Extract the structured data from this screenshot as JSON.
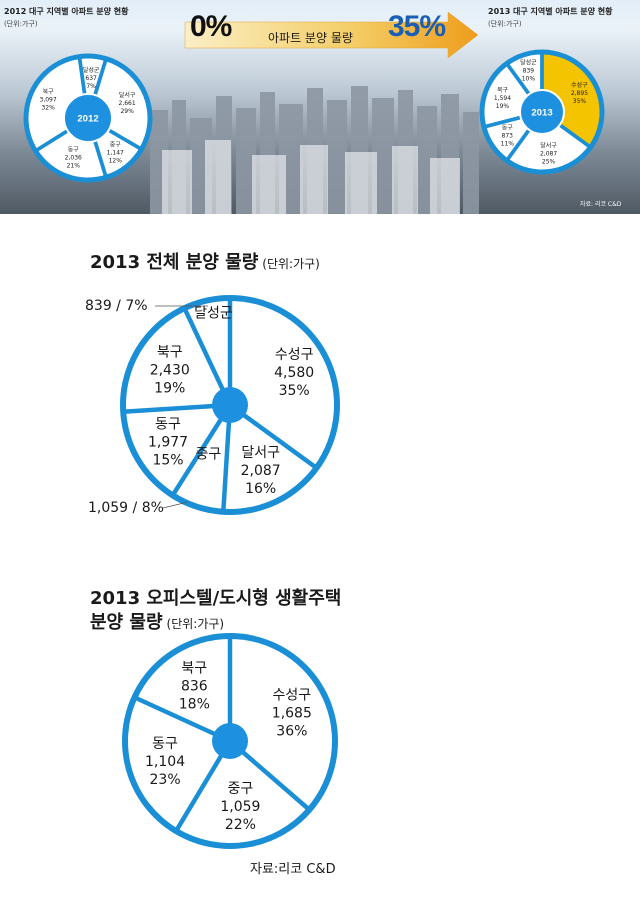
{
  "banner": {
    "left_title": "2012 대구 지역별 아파트 분양 현황",
    "left_unit": "(단위:가구)",
    "right_title": "2013 대구 지역별 아파트 분양 현황",
    "right_unit": "(단위:가구)",
    "from_pct": "0%",
    "to_pct": "35%",
    "arrow_label": "아파트 분양 물량",
    "credit": "자료: 리코 C&D"
  },
  "colors": {
    "ring_blue": "#1b8fd6",
    "hub_blue": "#1e90e0",
    "highlight_yellow": "#f5c400",
    "arrow_start": "#f4d88a",
    "arrow_end": "#f0a020",
    "pct_blue": "#1a5fb4"
  },
  "chart_data": [
    {
      "type": "pie",
      "title": "2012 대구 지역별 아파트 분양 현황",
      "unit": "(단위:가구)",
      "center_label": "2012",
      "slices": [
        {
          "name": "달성군",
          "value": "637",
          "pct": "7%",
          "share": 7
        },
        {
          "name": "달서구",
          "value": "2,661",
          "pct": "29%",
          "share": 29
        },
        {
          "name": "중구",
          "value": "1,147",
          "pct": "12%",
          "share": 12
        },
        {
          "name": "동구",
          "value": "2,036",
          "pct": "21%",
          "share": 21
        },
        {
          "name": "북구",
          "value": "3,097",
          "pct": "32%",
          "share": 32
        }
      ]
    },
    {
      "type": "pie",
      "title": "2013 대구 지역별 아파트 분양 현황",
      "unit": "(단위:가구)",
      "center_label": "2013",
      "slices": [
        {
          "name": "수성구",
          "value": "2,895",
          "pct": "35%",
          "share": 35,
          "highlight": true
        },
        {
          "name": "달서구",
          "value": "2,087",
          "pct": "25%",
          "share": 25
        },
        {
          "name": "동구",
          "value": "873",
          "pct": "11%",
          "share": 11
        },
        {
          "name": "북구",
          "value": "1,594",
          "pct": "19%",
          "share": 19
        },
        {
          "name": "달성군",
          "value": "839",
          "pct": "10%",
          "share": 10
        }
      ]
    },
    {
      "type": "pie",
      "title": "2013 전체 분양 물량",
      "unit": "(단위:가구)",
      "slices": [
        {
          "name": "수성구",
          "value": "4,580",
          "pct": "35%",
          "share": 35
        },
        {
          "name": "달서구",
          "value": "2,087",
          "pct": "16%",
          "share": 16
        },
        {
          "name": "중구",
          "value": "1,059",
          "pct": "8%",
          "share": 8
        },
        {
          "name": "동구",
          "value": "1,977",
          "pct": "15%",
          "share": 15
        },
        {
          "name": "북구",
          "value": "2,430",
          "pct": "19%",
          "share": 19
        },
        {
          "name": "달성군",
          "value": "839",
          "pct": "7%",
          "share": 7
        }
      ],
      "callouts": [
        "839 / 7%",
        "1,059 / 8%"
      ]
    },
    {
      "type": "pie",
      "title": "2013 오피스텔/도시형 생활주택",
      "title_line2": "분양 물량",
      "unit": "(단위:가구)",
      "slices": [
        {
          "name": "수성구",
          "value": "1,685",
          "pct": "36%",
          "share": 36
        },
        {
          "name": "중구",
          "value": "1,059",
          "pct": "22%",
          "share": 22
        },
        {
          "name": "동구",
          "value": "1,104",
          "pct": "23%",
          "share": 23
        },
        {
          "name": "북구",
          "value": "836",
          "pct": "18%",
          "share": 18
        }
      ]
    }
  ],
  "source": "자료:리코 C&D"
}
